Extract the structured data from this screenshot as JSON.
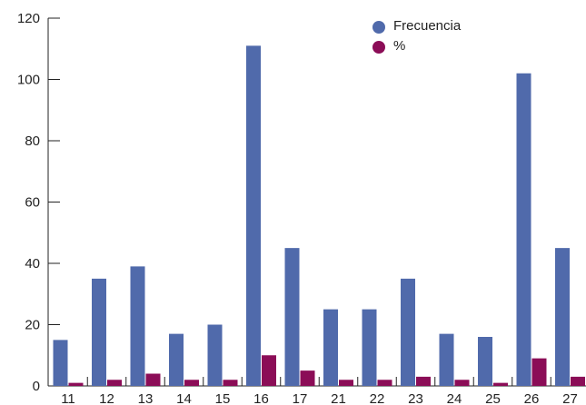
{
  "chart_data": {
    "type": "bar",
    "categories": [
      "11",
      "12",
      "13",
      "14",
      "15",
      "16",
      "17",
      "21",
      "22",
      "23",
      "24",
      "25",
      "26",
      "27"
    ],
    "series": [
      {
        "name": "Frecuencia",
        "color": "#506aab",
        "values": [
          15,
          35,
          39,
          17,
          20,
          111,
          45,
          25,
          25,
          35,
          17,
          16,
          102,
          45
        ]
      },
      {
        "name": "%",
        "color": "#8b0d57",
        "values": [
          1,
          2,
          4,
          2,
          2,
          10,
          5,
          2,
          2,
          3,
          2,
          1,
          9,
          3
        ]
      }
    ],
    "yticks": [
      0,
      20,
      40,
      60,
      80,
      100,
      120
    ],
    "ylim": [
      0,
      120
    ],
    "grid": false,
    "legend": "top-center"
  }
}
